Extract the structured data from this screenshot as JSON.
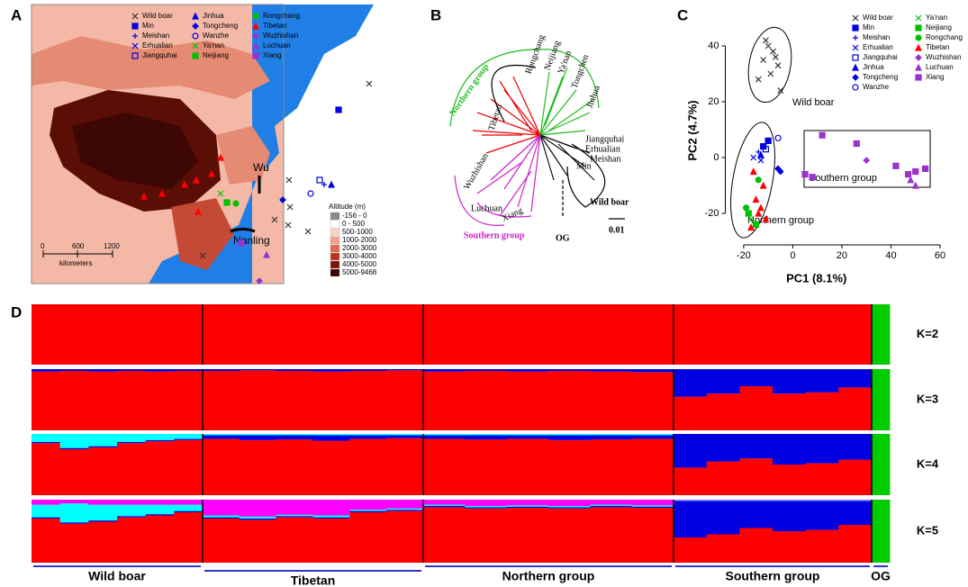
{
  "panel_labels": [
    "A",
    "B",
    "C",
    "D"
  ],
  "map": {
    "legend": [
      "Wild boar",
      "Min",
      "Meishan",
      "Erhualian",
      "Jiangquhai",
      "Jinhua",
      "Tongcheng",
      "Wanzhe",
      "Ya'nan",
      "Neijiang",
      "Rongchang",
      "Tibetan",
      "Wuzhishan",
      "Luchuan",
      "Xiang"
    ],
    "labels": [
      "Wu",
      "Nanling"
    ],
    "scale": [
      "0",
      "600",
      "1200",
      "kilometers"
    ],
    "altitude_title": "Altitude (m)",
    "altitude": [
      "-156 - 0",
      "0 - 500",
      "500-1000",
      "1000-2000",
      "2000-3000",
      "3000-4000",
      "4000-5000",
      "5000-9468"
    ]
  },
  "tree": {
    "groups": [
      "Northern group",
      "Southern group"
    ],
    "leaves": [
      "Rongchang",
      "Neijiang",
      "Ya'nan",
      "Tongchen",
      "Jinhua",
      "Jiangquhai",
      "Erhualian",
      "Meishan",
      "Min",
      "Tibetan",
      "Wild boar",
      "OG",
      "Xiang",
      "Wuzhishan",
      "Luchuan"
    ],
    "scale": "0.01"
  },
  "chart_data": [
    {
      "type": "scatter",
      "xlabel": "PC1 (8.1%)",
      "ylabel": "PC2 (4.7%)",
      "xlim": [
        -26,
        60
      ],
      "ylim": [
        -30,
        50
      ],
      "xticks": [
        -20,
        0,
        20,
        40,
        60
      ],
      "yticks": [
        -20,
        0,
        20,
        40
      ],
      "annotations": [
        "Wild boar",
        "Northern group",
        "Southern group"
      ],
      "series": [
        {
          "name": "Wild boar",
          "color": "#333333",
          "marker": "x",
          "x": [
            -10,
            -8,
            -12,
            -6,
            -9,
            -14,
            -5,
            -7,
            -11
          ],
          "y": [
            40,
            38,
            35,
            33,
            30,
            28,
            24,
            36,
            42
          ]
        },
        {
          "name": "Min",
          "color": "#0000e0",
          "marker": "square",
          "x": [
            -12,
            -10
          ],
          "y": [
            4,
            6
          ]
        },
        {
          "name": "Meishan",
          "color": "#0000e0",
          "marker": "plus",
          "x": [
            -14
          ],
          "y": [
            2
          ]
        },
        {
          "name": "Erhualian",
          "color": "#0000e0",
          "marker": "x",
          "x": [
            -16,
            -13
          ],
          "y": [
            0,
            -1
          ]
        },
        {
          "name": "Jiangquhai",
          "color": "#0000e0",
          "marker": "open-square",
          "x": [
            -11
          ],
          "y": [
            3
          ]
        },
        {
          "name": "Jinhua",
          "color": "#0000e0",
          "marker": "triangle",
          "x": [
            -13
          ],
          "y": [
            1
          ]
        },
        {
          "name": "Tongcheng",
          "color": "#0000e0",
          "marker": "diamond",
          "x": [
            -6,
            -5
          ],
          "y": [
            -4,
            -5
          ]
        },
        {
          "name": "Wanzhe",
          "color": "#0000e0",
          "marker": "open-circle",
          "x": [
            -6
          ],
          "y": [
            7
          ]
        },
        {
          "name": "Ya'nan",
          "color": "#00c000",
          "marker": "x",
          "x": [
            -17
          ],
          "y": [
            -22
          ]
        },
        {
          "name": "Neijiang",
          "color": "#00c000",
          "marker": "square",
          "x": [
            -18,
            -15
          ],
          "y": [
            -20,
            -24
          ]
        },
        {
          "name": "Rongchang",
          "color": "#00c000",
          "marker": "circle",
          "x": [
            -19,
            -14
          ],
          "y": [
            -18,
            -8
          ]
        },
        {
          "name": "Tibetan",
          "color": "#ff0000",
          "marker": "triangle",
          "x": [
            -15,
            -13,
            -17,
            -12,
            -16,
            -14,
            -11
          ],
          "y": [
            -15,
            -18,
            -25,
            -10,
            -5,
            -20,
            -22
          ]
        },
        {
          "name": "Wuzhishan",
          "color": "#9933cc",
          "marker": "diamond",
          "x": [
            30
          ],
          "y": [
            -1
          ]
        },
        {
          "name": "Luchuan",
          "color": "#9933cc",
          "marker": "triangle",
          "x": [
            48,
            50
          ],
          "y": [
            -8,
            -10
          ]
        },
        {
          "name": "Xiang",
          "color": "#9933cc",
          "marker": "square",
          "x": [
            12,
            26,
            5,
            8,
            42,
            50,
            54,
            47
          ],
          "y": [
            8,
            5,
            -6,
            -7,
            -3,
            -5,
            -4,
            -6
          ]
        }
      ]
    },
    {
      "type": "admixture",
      "groups": [
        "Wild boar",
        "Tibetan",
        "Northern group",
        "Southern group",
        "OG"
      ],
      "panels": [
        {
          "label": "K=2",
          "colors": [
            "#ff0000",
            "#00cc00"
          ],
          "groups": [
            [
              [
                1,
                0
              ],
              [
                1,
                0
              ],
              [
                1,
                0
              ],
              [
                1,
                0
              ],
              [
                1,
                0
              ],
              [
                1,
                0
              ]
            ],
            [
              [
                1,
                0
              ],
              [
                1,
                0
              ],
              [
                1,
                0
              ],
              [
                1,
                0
              ],
              [
                1,
                0
              ],
              [
                1,
                0
              ]
            ],
            [
              [
                1,
                0
              ],
              [
                1,
                0
              ],
              [
                1,
                0
              ],
              [
                1,
                0
              ],
              [
                1,
                0
              ],
              [
                1,
                0
              ]
            ],
            [
              [
                1,
                0
              ],
              [
                1,
                0
              ],
              [
                1,
                0
              ],
              [
                1,
                0
              ],
              [
                1,
                0
              ],
              [
                1,
                0
              ]
            ],
            [
              [
                0,
                1
              ]
            ]
          ]
        },
        {
          "label": "K=3",
          "colors": [
            "#ff0000",
            "#0000e0",
            "#00cc00"
          ],
          "groups": [
            [
              [
                0.96,
                0.04,
                0
              ],
              [
                0.97,
                0.03,
                0
              ],
              [
                0.96,
                0.04,
                0
              ],
              [
                0.97,
                0.03,
                0
              ],
              [
                0.96,
                0.04,
                0
              ],
              [
                0.97,
                0.03,
                0
              ]
            ],
            [
              [
                0.97,
                0.03,
                0
              ],
              [
                0.98,
                0.02,
                0
              ],
              [
                0.97,
                0.03,
                0
              ],
              [
                0.96,
                0.04,
                0
              ],
              [
                0.97,
                0.03,
                0
              ],
              [
                0.98,
                0.02,
                0
              ]
            ],
            [
              [
                0.96,
                0.04,
                0
              ],
              [
                0.97,
                0.03,
                0
              ],
              [
                0.96,
                0.04,
                0
              ],
              [
                0.97,
                0.03,
                0
              ],
              [
                0.96,
                0.04,
                0
              ],
              [
                0.95,
                0.05,
                0
              ]
            ],
            [
              [
                0.55,
                0.45,
                0
              ],
              [
                0.6,
                0.4,
                0
              ],
              [
                0.72,
                0.28,
                0
              ],
              [
                0.6,
                0.4,
                0
              ],
              [
                0.62,
                0.38,
                0
              ],
              [
                0.7,
                0.3,
                0
              ]
            ],
            [
              [
                0,
                0,
                1
              ]
            ]
          ]
        },
        {
          "label": "K=4",
          "colors": [
            "#ff0000",
            "#0000e0",
            "#00ffff",
            "#00cc00"
          ],
          "groups": [
            [
              [
                0.85,
                0.02,
                0.13,
                0
              ],
              [
                0.75,
                0.02,
                0.23,
                0
              ],
              [
                0.78,
                0.02,
                0.2,
                0
              ],
              [
                0.85,
                0.02,
                0.13,
                0
              ],
              [
                0.88,
                0.02,
                0.1,
                0
              ],
              [
                0.9,
                0.02,
                0.08,
                0
              ]
            ],
            [
              [
                0.92,
                0.06,
                0.02,
                0
              ],
              [
                0.9,
                0.08,
                0.02,
                0
              ],
              [
                0.91,
                0.07,
                0.02,
                0
              ],
              [
                0.89,
                0.09,
                0.02,
                0
              ],
              [
                0.92,
                0.06,
                0.02,
                0
              ],
              [
                0.93,
                0.05,
                0.02,
                0
              ]
            ],
            [
              [
                0.92,
                0.06,
                0.02,
                0
              ],
              [
                0.91,
                0.07,
                0.02,
                0
              ],
              [
                0.92,
                0.06,
                0.02,
                0
              ],
              [
                0.9,
                0.08,
                0.02,
                0
              ],
              [
                0.91,
                0.07,
                0.02,
                0
              ],
              [
                0.92,
                0.06,
                0.02,
                0
              ]
            ],
            [
              [
                0.45,
                0.55,
                0,
                0
              ],
              [
                0.55,
                0.45,
                0,
                0
              ],
              [
                0.6,
                0.4,
                0,
                0
              ],
              [
                0.5,
                0.5,
                0,
                0
              ],
              [
                0.52,
                0.48,
                0,
                0
              ],
              [
                0.58,
                0.42,
                0,
                0
              ]
            ],
            [
              [
                0,
                0,
                0,
                1
              ]
            ]
          ]
        },
        {
          "label": "K=5",
          "colors": [
            "#ff0000",
            "#0000e0",
            "#00ffff",
            "#ff00ff",
            "#00cc00"
          ],
          "groups": [
            [
              [
                0.7,
                0.02,
                0.2,
                0.08,
                0
              ],
              [
                0.62,
                0.02,
                0.3,
                0.06,
                0
              ],
              [
                0.65,
                0.02,
                0.25,
                0.08,
                0
              ],
              [
                0.72,
                0.02,
                0.18,
                0.08,
                0
              ],
              [
                0.75,
                0.02,
                0.15,
                0.08,
                0
              ],
              [
                0.8,
                0.02,
                0.1,
                0.08,
                0
              ]
            ],
            [
              [
                0.7,
                0.02,
                0.03,
                0.25,
                0
              ],
              [
                0.68,
                0.02,
                0.03,
                0.27,
                0
              ],
              [
                0.72,
                0.02,
                0.02,
                0.24,
                0
              ],
              [
                0.7,
                0.02,
                0.03,
                0.25,
                0
              ],
              [
                0.8,
                0.02,
                0.02,
                0.16,
                0
              ],
              [
                0.82,
                0.02,
                0.02,
                0.14,
                0
              ]
            ],
            [
              [
                0.88,
                0.02,
                0.02,
                0.08,
                0
              ],
              [
                0.86,
                0.02,
                0.02,
                0.1,
                0
              ],
              [
                0.87,
                0.02,
                0.02,
                0.09,
                0
              ],
              [
                0.86,
                0.02,
                0.02,
                0.1,
                0
              ],
              [
                0.88,
                0.02,
                0.02,
                0.08,
                0
              ],
              [
                0.87,
                0.02,
                0.02,
                0.09,
                0
              ]
            ],
            [
              [
                0.4,
                0.58,
                0.01,
                0.01,
                0
              ],
              [
                0.45,
                0.53,
                0.01,
                0.01,
                0
              ],
              [
                0.55,
                0.43,
                0.01,
                0.01,
                0
              ],
              [
                0.5,
                0.48,
                0.01,
                0.01,
                0
              ],
              [
                0.52,
                0.46,
                0.01,
                0.01,
                0
              ],
              [
                0.6,
                0.38,
                0.01,
                0.01,
                0
              ]
            ],
            [
              [
                0,
                0,
                0,
                0,
                1
              ]
            ]
          ]
        }
      ]
    }
  ]
}
